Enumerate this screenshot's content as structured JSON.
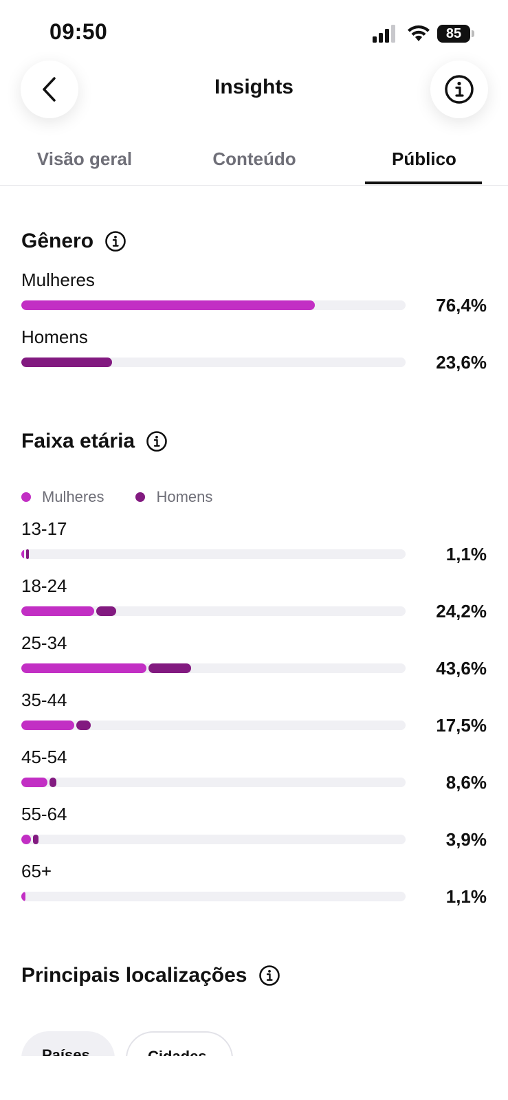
{
  "status_bar": {
    "time": "09:50",
    "battery": "85",
    "icons": [
      "cellular-signal-icon",
      "wifi-icon",
      "battery-icon"
    ]
  },
  "header": {
    "title": "Insights",
    "back_icon": "chevron-left-icon",
    "info_icon": "info-icon"
  },
  "tabs": [
    {
      "label": "Visão geral",
      "active": false
    },
    {
      "label": "Conteúdo",
      "active": false
    },
    {
      "label": "Público",
      "active": true
    }
  ],
  "colors": {
    "women": "#c22fc4",
    "men": "#821a80",
    "track": "#f0f0f4",
    "text": "#111111",
    "muted": "#6f6f78"
  },
  "gender": {
    "title": "Gênero",
    "rows": [
      {
        "label": "Mulheres",
        "percent_text": "76,4%",
        "value": 76.4
      },
      {
        "label": "Homens",
        "percent_text": "23,6%",
        "value": 23.6
      }
    ]
  },
  "age": {
    "title": "Faixa etária",
    "legend": {
      "women": "Mulheres",
      "men": "Homens"
    },
    "rows": [
      {
        "label": "13-17",
        "percent_text": "1,1%",
        "women": 0.5,
        "men": 0.6
      },
      {
        "label": "18-24",
        "percent_text": "24,2%",
        "women": 19.0,
        "men": 5.2
      },
      {
        "label": "25-34",
        "percent_text": "43,6%",
        "women": 32.6,
        "men": 11.0
      },
      {
        "label": "35-44",
        "percent_text": "17,5%",
        "women": 13.8,
        "men": 3.7
      },
      {
        "label": "45-54",
        "percent_text": "8,6%",
        "women": 6.8,
        "men": 1.8
      },
      {
        "label": "55-64",
        "percent_text": "3,9%",
        "women": 2.5,
        "men": 1.4
      },
      {
        "label": "65+",
        "percent_text": "1,1%",
        "women": 1.1,
        "men": 0
      }
    ]
  },
  "locations": {
    "title": "Principais localizações",
    "chips": [
      {
        "label": "Países",
        "active": true
      },
      {
        "label": "Cidades",
        "active": false
      }
    ]
  }
}
